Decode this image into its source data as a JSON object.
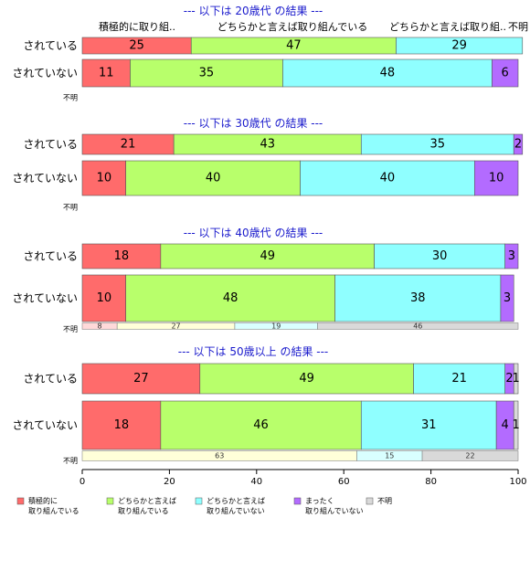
{
  "chart_data": {
    "type": "bar",
    "orientation": "horizontal-stacked",
    "xlim": [
      0,
      100
    ],
    "xticks": [
      0,
      20,
      40,
      60,
      80,
      100
    ],
    "header_labels": [
      "積極的に取り組..",
      "どちらかと言えば取り組んでいる",
      "どちらかと言えば取り組..",
      "不明"
    ],
    "legend": [
      {
        "lines": [
          "積極的に",
          "取り組んでいる"
        ],
        "color": "#ff6b6b"
      },
      {
        "lines": [
          "どちらかと言えば",
          "取り組んでいる"
        ],
        "color": "#b8ff6b"
      },
      {
        "lines": [
          "どちらかと言えば",
          "取り組んでいない"
        ],
        "color": "#8fffff"
      },
      {
        "lines": [
          "まったく",
          "取り組んでいない"
        ],
        "color": "#b36bff"
      },
      {
        "lines": [
          "不明"
        ],
        "color": "#d9d9d9"
      }
    ],
    "panels": [
      {
        "title": "--- 以下は 20歳代 の結果 ---",
        "rows": [
          {
            "label": "されている",
            "values": [
              25,
              47,
              29,
              0,
              0
            ]
          },
          {
            "label": "されていない",
            "values": [
              11,
              35,
              48,
              6,
              0
            ]
          }
        ],
        "unknown": {
          "label": "不明",
          "segments": []
        }
      },
      {
        "title": "--- 以下は 30歳代 の結果 ---",
        "rows": [
          {
            "label": "されている",
            "values": [
              21,
              43,
              35,
              2,
              0
            ]
          },
          {
            "label": "されていない",
            "values": [
              10,
              40,
              40,
              10,
              0
            ]
          }
        ],
        "unknown": {
          "label": "不明",
          "segments": []
        }
      },
      {
        "title": "--- 以下は 40歳代 の結果 ---",
        "rows": [
          {
            "label": "されている",
            "values": [
              18,
              49,
              30,
              3,
              0
            ]
          },
          {
            "label": "されていない",
            "values": [
              10,
              48,
              38,
              3,
              0
            ]
          }
        ],
        "unknown": {
          "label": "不明",
          "segments": [
            {
              "value": 8,
              "color": "#ffd9d9"
            },
            {
              "value": 27,
              "color": "#ffffd9"
            },
            {
              "value": 19,
              "color": "#d9ffff"
            },
            {
              "value": 46,
              "color": "#d9d9d9"
            }
          ]
        }
      },
      {
        "title": "--- 以下は 50歳以上 の結果 ---",
        "rows": [
          {
            "label": "されている",
            "values": [
              27,
              49,
              21,
              2,
              1
            ]
          },
          {
            "label": "されていない",
            "values": [
              18,
              46,
              31,
              4,
              1
            ]
          }
        ],
        "unknown": {
          "label": "不明",
          "segments": [
            {
              "value": 63,
              "color": "#ffffd9"
            },
            {
              "value": 15,
              "color": "#d9ffff"
            },
            {
              "value": 22,
              "color": "#d9d9d9"
            }
          ]
        }
      }
    ]
  }
}
